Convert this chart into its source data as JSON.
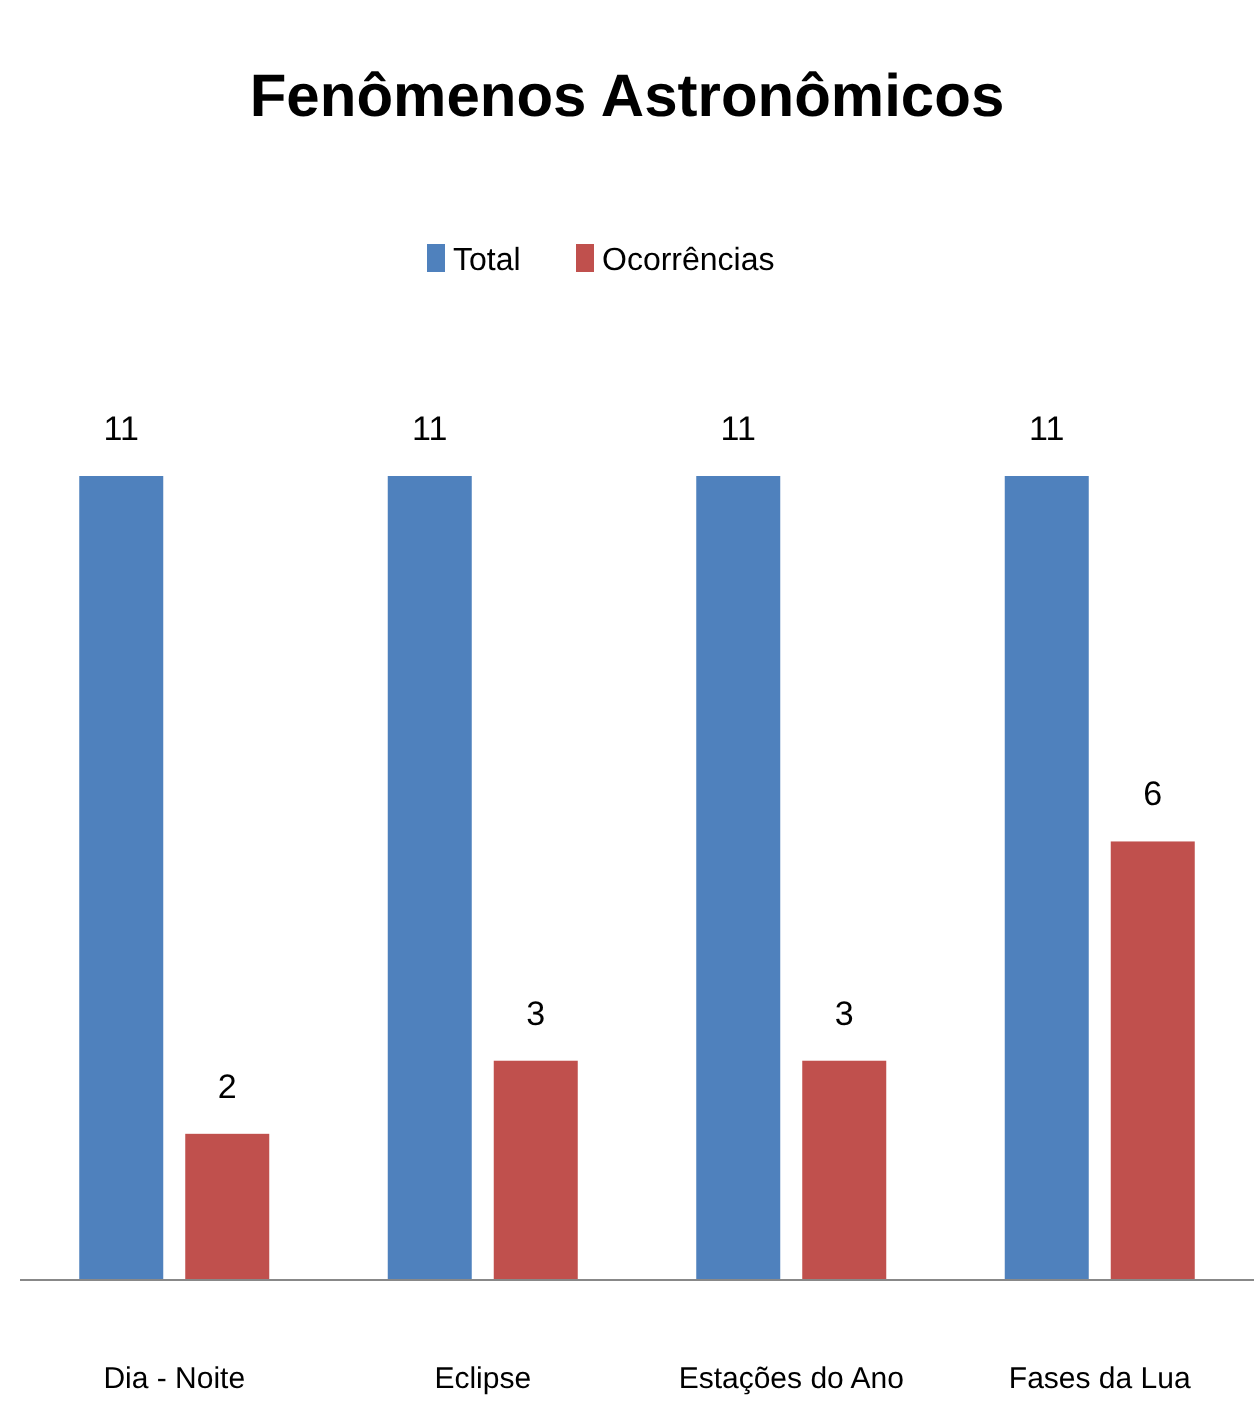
{
  "chart_data": {
    "type": "bar",
    "title": "Fenômenos Astronômicos",
    "categories": [
      "Dia - Noite",
      "Eclipse",
      "Estações do Ano",
      "Fases da Lua"
    ],
    "series": [
      {
        "name": "Total",
        "color": "#4f81bd",
        "values": [
          11,
          11,
          11,
          11
        ]
      },
      {
        "name": "Ocorrências",
        "color": "#c0504d",
        "values": [
          2,
          3,
          3,
          6
        ]
      }
    ],
    "data_labels": true,
    "legend": "top"
  }
}
